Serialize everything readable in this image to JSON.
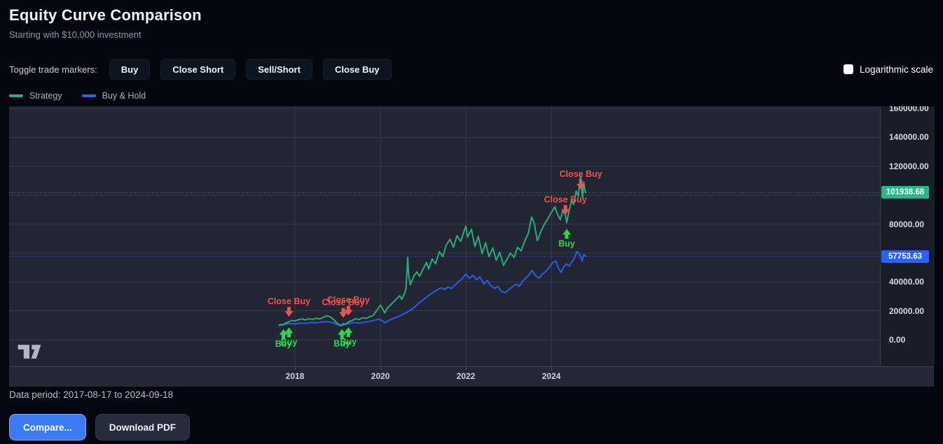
{
  "header": {
    "title": "Equity Curve Comparison",
    "subtitle": "Starting with $10,000 investment"
  },
  "toolbar": {
    "label": "Toggle trade markers:",
    "buttons": [
      "Buy",
      "Close Short",
      "Sell/Short",
      "Close Buy"
    ],
    "log_scale_label": "Logarithmic scale",
    "log_scale_checked": false
  },
  "legend": [
    {
      "label": "Strategy",
      "color": "#2bb07c"
    },
    {
      "label": "Buy & Hold",
      "color": "#2962ff"
    }
  ],
  "footer": {
    "data_period": "Data period: 2017-08-17 to 2024-09-18",
    "compare_label": "Compare...",
    "download_label": "Download PDF"
  },
  "watermark_icon": "tradingview-logo",
  "chart_data": {
    "type": "line",
    "title": "Equity Curve Comparison",
    "grid": true,
    "legend_position": "top-left",
    "x_axis": {
      "domain": [
        2011.31,
        2031.69
      ],
      "ticks": [
        {
          "value": 2018,
          "text": "2018"
        },
        {
          "value": 2020,
          "text": "2020"
        },
        {
          "value": 2022,
          "text": "2022"
        },
        {
          "value": 2024,
          "text": "2024"
        }
      ]
    },
    "y_axis": {
      "side": "right",
      "domain": [
        -18400,
        161500
      ],
      "grid_values": [
        0,
        20000,
        40000,
        60000,
        80000,
        100000,
        120000,
        140000,
        160000
      ],
      "labels": [
        {
          "value": 160000,
          "text": "160000.00"
        },
        {
          "value": 140000,
          "text": "140000.00"
        },
        {
          "value": 120000,
          "text": "120000.00"
        },
        {
          "value": 80000,
          "text": "80000.00"
        },
        {
          "value": 40000,
          "text": "40000.00"
        },
        {
          "value": 20000,
          "text": "20000.00"
        },
        {
          "value": 0,
          "text": "0.00"
        }
      ]
    },
    "price_lines": [
      {
        "value": 101938.68,
        "text": "101938.68",
        "color": "#26b987",
        "series": "Strategy"
      },
      {
        "value": 57753.63,
        "text": "57753.63",
        "color": "#2962ff",
        "series": "Buy & Hold"
      }
    ],
    "series": [
      {
        "name": "Buy & Hold",
        "color": "#2a5ce8",
        "final_value": 57753.63,
        "points": [
          [
            2017.63,
            10000
          ],
          [
            2017.75,
            10500
          ],
          [
            2017.88,
            11200
          ],
          [
            2018.0,
            11000
          ],
          [
            2018.13,
            11600
          ],
          [
            2018.25,
            11300
          ],
          [
            2018.38,
            12000
          ],
          [
            2018.5,
            11700
          ],
          [
            2018.63,
            12300
          ],
          [
            2018.75,
            12600
          ],
          [
            2018.88,
            11900
          ],
          [
            2019.0,
            10400
          ],
          [
            2019.08,
            9700
          ],
          [
            2019.17,
            10700
          ],
          [
            2019.25,
            11300
          ],
          [
            2019.38,
            11900
          ],
          [
            2019.5,
            11500
          ],
          [
            2019.63,
            12200
          ],
          [
            2019.75,
            12800
          ],
          [
            2019.88,
            13600
          ],
          [
            2019.96,
            14300
          ],
          [
            2020.04,
            13300
          ],
          [
            2020.1,
            11800
          ],
          [
            2020.17,
            13000
          ],
          [
            2020.25,
            14200
          ],
          [
            2020.38,
            15600
          ],
          [
            2020.5,
            17200
          ],
          [
            2020.63,
            19200
          ],
          [
            2020.75,
            21500
          ],
          [
            2020.85,
            24000
          ],
          [
            2020.92,
            26000
          ],
          [
            2021.0,
            27500
          ],
          [
            2021.08,
            29500
          ],
          [
            2021.17,
            31500
          ],
          [
            2021.25,
            33000
          ],
          [
            2021.33,
            34500
          ],
          [
            2021.42,
            36000
          ],
          [
            2021.5,
            34800
          ],
          [
            2021.58,
            36500
          ],
          [
            2021.67,
            35500
          ],
          [
            2021.75,
            38000
          ],
          [
            2021.83,
            40000
          ],
          [
            2021.92,
            42500
          ],
          [
            2022.0,
            45500
          ],
          [
            2022.08,
            42500
          ],
          [
            2022.17,
            44500
          ],
          [
            2022.25,
            41500
          ],
          [
            2022.33,
            43500
          ],
          [
            2022.42,
            38500
          ],
          [
            2022.5,
            41000
          ],
          [
            2022.58,
            37500
          ],
          [
            2022.67,
            35500
          ],
          [
            2022.75,
            37000
          ],
          [
            2022.83,
            33500
          ],
          [
            2022.92,
            32500
          ],
          [
            2023.0,
            34500
          ],
          [
            2023.08,
            36500
          ],
          [
            2023.17,
            38500
          ],
          [
            2023.25,
            37000
          ],
          [
            2023.33,
            40500
          ],
          [
            2023.42,
            43000
          ],
          [
            2023.5,
            46000
          ],
          [
            2023.54,
            48000
          ],
          [
            2023.63,
            44500
          ],
          [
            2023.71,
            42500
          ],
          [
            2023.79,
            45500
          ],
          [
            2023.88,
            47500
          ],
          [
            2023.96,
            50500
          ],
          [
            2024.04,
            53500
          ],
          [
            2024.1,
            54500
          ],
          [
            2024.17,
            49500
          ],
          [
            2024.23,
            46500
          ],
          [
            2024.29,
            50500
          ],
          [
            2024.35,
            52500
          ],
          [
            2024.42,
            51000
          ],
          [
            2024.48,
            54000
          ],
          [
            2024.54,
            56500
          ],
          [
            2024.6,
            61000
          ],
          [
            2024.65,
            59500
          ],
          [
            2024.69,
            57000
          ],
          [
            2024.72,
            54500
          ],
          [
            2024.76,
            59000
          ],
          [
            2024.8,
            57753.63
          ]
        ]
      },
      {
        "name": "Strategy",
        "color": "#2aac76",
        "final_value": 101938.68,
        "points": [
          [
            2017.63,
            10000
          ],
          [
            2017.68,
            10700
          ],
          [
            2017.72,
            10300
          ],
          [
            2017.78,
            11600
          ],
          [
            2017.83,
            12100
          ],
          [
            2017.88,
            12800
          ],
          [
            2017.93,
            13400
          ],
          [
            2018.0,
            13000
          ],
          [
            2018.08,
            13900
          ],
          [
            2018.17,
            14400
          ],
          [
            2018.25,
            13700
          ],
          [
            2018.33,
            14600
          ],
          [
            2018.42,
            14100
          ],
          [
            2018.5,
            14900
          ],
          [
            2018.58,
            14400
          ],
          [
            2018.67,
            15700
          ],
          [
            2018.75,
            16600
          ],
          [
            2018.83,
            15800
          ],
          [
            2018.92,
            13500
          ],
          [
            2019.0,
            11200
          ],
          [
            2019.08,
            9800
          ],
          [
            2019.13,
            11200
          ],
          [
            2019.19,
            10600
          ],
          [
            2019.25,
            12400
          ],
          [
            2019.33,
            13300
          ],
          [
            2019.42,
            14600
          ],
          [
            2019.5,
            14000
          ],
          [
            2019.58,
            15200
          ],
          [
            2019.67,
            14800
          ],
          [
            2019.75,
            15900
          ],
          [
            2019.83,
            16800
          ],
          [
            2019.92,
            20500
          ],
          [
            2020.0,
            24000
          ],
          [
            2020.06,
            21000
          ],
          [
            2020.1,
            18500
          ],
          [
            2020.15,
            21500
          ],
          [
            2020.25,
            24500
          ],
          [
            2020.35,
            27500
          ],
          [
            2020.45,
            30500
          ],
          [
            2020.5,
            28000
          ],
          [
            2020.58,
            33000
          ],
          [
            2020.6,
            36000
          ],
          [
            2020.64,
            57000
          ],
          [
            2020.66,
            45000
          ],
          [
            2020.7,
            38000
          ],
          [
            2020.78,
            44000
          ],
          [
            2020.85,
            47000
          ],
          [
            2020.92,
            44000
          ],
          [
            2021.0,
            49000
          ],
          [
            2021.08,
            53500
          ],
          [
            2021.13,
            48800
          ],
          [
            2021.21,
            56000
          ],
          [
            2021.29,
            52500
          ],
          [
            2021.38,
            61000
          ],
          [
            2021.46,
            57500
          ],
          [
            2021.54,
            65500
          ],
          [
            2021.63,
            69500
          ],
          [
            2021.71,
            64000
          ],
          [
            2021.79,
            72000
          ],
          [
            2021.88,
            68000
          ],
          [
            2021.96,
            75500
          ],
          [
            2022.0,
            78500
          ],
          [
            2022.04,
            71000
          ],
          [
            2022.13,
            76500
          ],
          [
            2022.21,
            64500
          ],
          [
            2022.29,
            71500
          ],
          [
            2022.38,
            59500
          ],
          [
            2022.46,
            67000
          ],
          [
            2022.54,
            57500
          ],
          [
            2022.63,
            63500
          ],
          [
            2022.71,
            55000
          ],
          [
            2022.79,
            60500
          ],
          [
            2022.88,
            51500
          ],
          [
            2022.96,
            55500
          ],
          [
            2023.04,
            60000
          ],
          [
            2023.13,
            57000
          ],
          [
            2023.21,
            64000
          ],
          [
            2023.29,
            61500
          ],
          [
            2023.38,
            68500
          ],
          [
            2023.46,
            73500
          ],
          [
            2023.54,
            85000
          ],
          [
            2023.6,
            80500
          ],
          [
            2023.67,
            68500
          ],
          [
            2023.75,
            74500
          ],
          [
            2023.83,
            79500
          ],
          [
            2023.92,
            84000
          ],
          [
            2024.0,
            88000
          ],
          [
            2024.08,
            92000
          ],
          [
            2024.15,
            86500
          ],
          [
            2024.21,
            83000
          ],
          [
            2024.27,
            89500
          ],
          [
            2024.33,
            86000
          ],
          [
            2024.36,
            81000
          ],
          [
            2024.42,
            90000
          ],
          [
            2024.48,
            97000
          ],
          [
            2024.52,
            93500
          ],
          [
            2024.58,
            103000
          ],
          [
            2024.63,
            99000
          ],
          [
            2024.68,
            113500
          ],
          [
            2024.71,
            105000
          ],
          [
            2024.73,
            98500
          ],
          [
            2024.76,
            109000
          ],
          [
            2024.78,
            104000
          ],
          [
            2024.8,
            101938.68
          ]
        ]
      }
    ],
    "markers": [
      {
        "type": "buy",
        "label": "Buy",
        "year": 2017.73,
        "value": 10200
      },
      {
        "type": "buy",
        "label": "Buy",
        "year": 2017.86,
        "value": 11400
      },
      {
        "type": "close_buy",
        "label": "Close Buy",
        "year": 2017.86,
        "value": 13100
      },
      {
        "type": "buy",
        "label": "Buy",
        "year": 2019.1,
        "value": 10300
      },
      {
        "type": "buy",
        "label": "Buy",
        "year": 2019.25,
        "value": 11600
      },
      {
        "type": "close_buy",
        "label": "Close Buy",
        "year": 2019.13,
        "value": 12300
      },
      {
        "type": "close_buy",
        "label": "Close Buy",
        "year": 2019.25,
        "value": 13900
      },
      {
        "type": "close_buy",
        "label": "Close Buy",
        "year": 2024.33,
        "value": 83500
      },
      {
        "type": "buy",
        "label": "Buy",
        "year": 2024.36,
        "value": 79500
      },
      {
        "type": "close_buy",
        "label": "Close Buy",
        "year": 2024.69,
        "value": 101000
      }
    ],
    "marker_colors": {
      "buy": "#27d94c",
      "close_buy": "#ef5350"
    }
  }
}
